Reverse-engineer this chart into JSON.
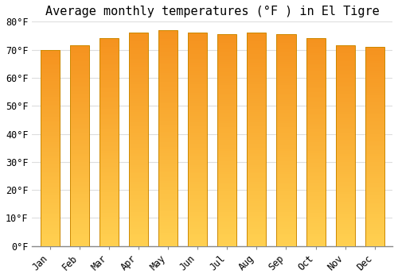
{
  "title": "Average monthly temperatures (°F ) in El Tigre",
  "months": [
    "Jan",
    "Feb",
    "Mar",
    "Apr",
    "May",
    "Jun",
    "Jul",
    "Aug",
    "Sep",
    "Oct",
    "Nov",
    "Dec"
  ],
  "values": [
    70.0,
    71.5,
    74.0,
    76.0,
    77.0,
    76.0,
    75.5,
    76.0,
    75.5,
    74.0,
    71.5,
    71.0
  ],
  "bar_color": "#FFA520",
  "bar_gradient_top": "#F5921E",
  "bar_gradient_bottom": "#FFD050",
  "bar_edge_color": "#CC8800",
  "background_color": "#FFFFFF",
  "plot_bg_color": "#FFFFFF",
  "grid_color": "#DDDDDD",
  "ylim": [
    0,
    80
  ],
  "ytick_step": 10,
  "title_fontsize": 11,
  "tick_fontsize": 8.5,
  "tick_font_family": "monospace"
}
